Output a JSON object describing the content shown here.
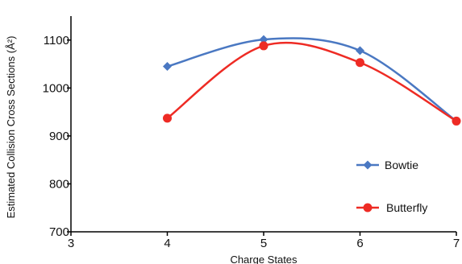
{
  "chart_data": {
    "type": "line",
    "x": [
      4,
      5,
      6,
      7
    ],
    "xticks": [
      3,
      4,
      5,
      6,
      7
    ],
    "yticks": [
      700,
      800,
      900,
      1000,
      1100
    ],
    "xlim": [
      3,
      7
    ],
    "ylim": [
      700,
      1150
    ],
    "xlabel": "Charge States",
    "ylabel": "Estimated Collision Cross Sections (Å²)",
    "title": "",
    "grid": false,
    "legend_position": "bottom-right",
    "smoothed": true,
    "series": [
      {
        "name": "Bowtie",
        "color": "#4a78c2",
        "marker": "diamond",
        "values": [
          1045,
          1101,
          1078,
          931
        ]
      },
      {
        "name": "Butterfly",
        "color": "#ee2b24",
        "marker": "circle",
        "values": [
          937,
          1088,
          1053,
          931
        ]
      }
    ]
  }
}
